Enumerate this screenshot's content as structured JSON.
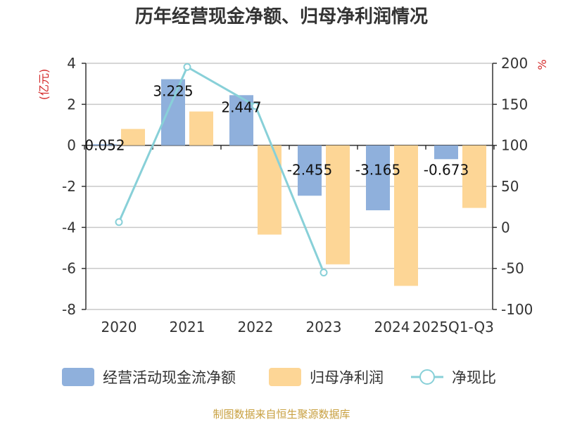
{
  "chart_data": {
    "type": "bar",
    "title": "历年经营现金净额、归母净利润情况",
    "categories": [
      "2020",
      "2021",
      "2022",
      "2023",
      "2024",
      "2025Q1-Q3"
    ],
    "series": [
      {
        "name": "经营活动现金流净额",
        "type": "bar",
        "axis": "left",
        "color": "#8fb0dc",
        "values": [
          0.052,
          3.225,
          2.447,
          -2.455,
          -3.165,
          -0.673
        ],
        "labels": [
          "0.052",
          "3.225",
          "2.447",
          "-2.455",
          "-3.165",
          "-0.673"
        ]
      },
      {
        "name": "归母净利润",
        "type": "bar",
        "axis": "left",
        "color": "#fdd696",
        "values": [
          0.8,
          1.65,
          -4.35,
          -5.8,
          -6.85,
          -3.05
        ]
      },
      {
        "name": "净现比",
        "type": "line",
        "axis": "right",
        "color": "#88d0d8",
        "values": [
          6.5,
          195.5,
          148,
          -55,
          null,
          null
        ]
      }
    ],
    "y_left": {
      "label": "(亿元)",
      "min": -8,
      "max": 4,
      "ticks": [
        "4",
        "2",
        "0",
        "-2",
        "-4",
        "-6",
        "-8"
      ]
    },
    "y_right": {
      "label": "%",
      "min": -100,
      "max": 200,
      "ticks": [
        "200",
        "150",
        "100",
        "50",
        "0",
        "-50",
        "-100"
      ]
    },
    "grid": true,
    "legend_position": "bottom"
  },
  "source": "制图数据来自恒生聚源数据库"
}
